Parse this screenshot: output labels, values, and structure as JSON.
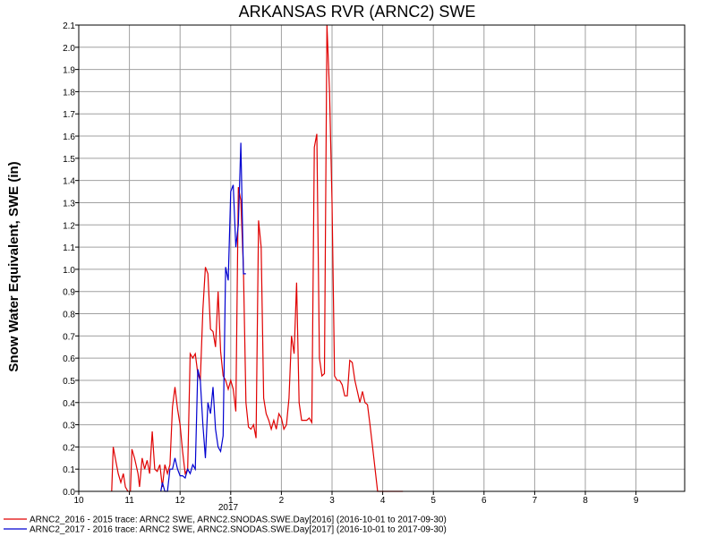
{
  "chart_data": {
    "type": "line",
    "title": "ARKANSAS RVR (ARNC2) SWE",
    "xlabel": "",
    "ylabel": "Snow Water Equivalent, SWE (in)",
    "ylim": [
      0,
      2.1
    ],
    "xlim": [
      10,
      10.2
    ],
    "grid": true,
    "legend_position": "bottom-left",
    "x_tick_labels": [
      "10",
      "11",
      "12",
      "1",
      "2",
      "3",
      "4",
      "5",
      "6",
      "7",
      "8",
      "9"
    ],
    "x_year_label": "2017",
    "y_tick_labels": [
      "0.0",
      "0.1",
      "0.2",
      "0.3",
      "0.4",
      "0.5",
      "0.6",
      "0.7",
      "0.8",
      "0.9",
      "1.0",
      "1.1",
      "1.2",
      "1.3",
      "1.4",
      "1.5",
      "1.6",
      "1.7",
      "1.8",
      "1.9",
      "2.0",
      "2.1"
    ],
    "series": [
      {
        "name": "ARNC2_2016 - 2015 trace: ARNC2 SWE, ARNC2.SNODAS.SWE.Day[2016] (2016-10-01 to 2017-09-30)",
        "color": "#e00000",
        "x": [
          10.65,
          10.68,
          10.72,
          10.78,
          10.83,
          10.88,
          10.92,
          10.97,
          11.02,
          11.05,
          11.1,
          11.13,
          11.17,
          11.2,
          11.25,
          11.3,
          11.35,
          11.4,
          11.45,
          11.5,
          11.55,
          11.6,
          11.65,
          11.7,
          11.75,
          11.8,
          11.85,
          11.9,
          11.95,
          12.0,
          12.05,
          12.1,
          12.15,
          12.2,
          12.25,
          12.3,
          12.35,
          12.4,
          12.45,
          12.5,
          12.55,
          12.6,
          12.65,
          12.7,
          12.75,
          12.8,
          12.85,
          12.9,
          12.95,
          13.0,
          13.05,
          13.1,
          13.15,
          13.2,
          13.25,
          13.3,
          13.35,
          13.4,
          13.45,
          13.5,
          13.55,
          13.6,
          13.65,
          13.7,
          13.75,
          13.8,
          13.85,
          13.9,
          13.95,
          14.0,
          14.05,
          14.1,
          14.15,
          14.2,
          14.25,
          14.3,
          14.35,
          14.4,
          14.45,
          14.5,
          14.55,
          14.6,
          14.65,
          14.7,
          14.75,
          14.8,
          14.85,
          14.9,
          14.95,
          15.0,
          15.05,
          15.1,
          15.15,
          15.2,
          15.25,
          15.3,
          15.35,
          15.4,
          15.45,
          15.5,
          15.55,
          15.6,
          15.65,
          15.7,
          15.75,
          15.8,
          15.85,
          15.9,
          15.95,
          16.0,
          16.05,
          16.1,
          16.15,
          16.2,
          16.25,
          16.3,
          16.35,
          16.4
        ],
        "y": [
          0.0,
          0.2,
          0.15,
          0.08,
          0.04,
          0.08,
          0.02,
          0.0,
          0.0,
          0.19,
          0.15,
          0.12,
          0.08,
          0.02,
          0.15,
          0.1,
          0.14,
          0.08,
          0.27,
          0.1,
          0.09,
          0.12,
          0.02,
          0.12,
          0.08,
          0.12,
          0.38,
          0.47,
          0.37,
          0.3,
          0.18,
          0.08,
          0.1,
          0.62,
          0.6,
          0.62,
          0.53,
          0.5,
          0.82,
          1.01,
          0.98,
          0.73,
          0.72,
          0.65,
          0.9,
          0.63,
          0.52,
          0.5,
          0.46,
          0.5,
          0.46,
          0.36,
          1.37,
          1.31,
          1.0,
          0.4,
          0.29,
          0.28,
          0.3,
          0.24,
          1.22,
          1.1,
          0.42,
          0.35,
          0.32,
          0.28,
          0.32,
          0.28,
          0.35,
          0.33,
          0.28,
          0.3,
          0.42,
          0.7,
          0.62,
          0.94,
          0.4,
          0.32,
          0.32,
          0.32,
          0.33,
          0.31,
          1.55,
          1.61,
          0.6,
          0.52,
          0.53,
          2.1,
          1.8,
          1.3,
          0.52,
          0.5,
          0.5,
          0.48,
          0.43,
          0.43,
          0.59,
          0.58,
          0.5,
          0.45,
          0.4,
          0.45,
          0.4,
          0.39,
          0.3,
          0.2,
          0.1,
          0.0,
          0.0,
          0.0,
          0.0,
          0.0,
          0.0,
          0.0,
          0.0,
          0.0,
          0.0,
          0.0
        ]
      },
      {
        "name": "ARNC2_2017 - 2016 trace: ARNC2 SWE, ARNC2.SNODAS.SWE.Day[2017] (2016-10-01 to 2017-09-30)",
        "color": "#0000d0",
        "x": [
          11.62,
          11.65,
          11.7,
          11.75,
          11.8,
          11.85,
          11.9,
          11.95,
          12.0,
          12.05,
          12.1,
          12.15,
          12.2,
          12.25,
          12.3,
          12.35,
          12.4,
          12.45,
          12.5,
          12.55,
          12.6,
          12.65,
          12.7,
          12.75,
          12.8,
          12.85,
          12.9,
          12.95,
          13.0,
          13.05,
          13.1,
          13.15,
          13.2,
          13.25,
          13.3,
          13.35,
          13.4,
          13.45,
          13.5,
          13.55
        ],
        "y": [
          0.0,
          0.04,
          0.0,
          0.0,
          0.1,
          0.1,
          0.15,
          0.1,
          0.07,
          0.07,
          0.06,
          0.1,
          0.08,
          0.12,
          0.1,
          0.55,
          0.5,
          0.3,
          0.15,
          0.4,
          0.35,
          0.47,
          0.28,
          0.2,
          0.18,
          0.25,
          1.01,
          0.95,
          1.35,
          1.38,
          1.1,
          1.2,
          1.57,
          0.98,
          0.98,
          null,
          null,
          null,
          null,
          null
        ]
      }
    ]
  }
}
